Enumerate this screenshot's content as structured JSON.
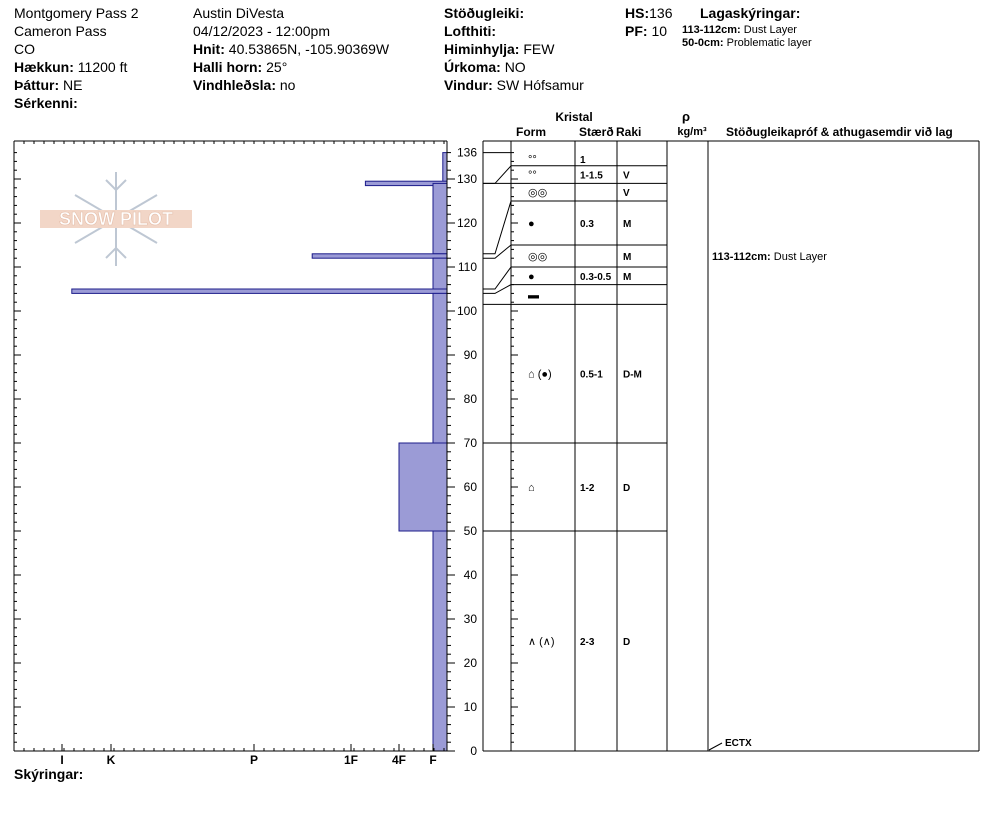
{
  "header": {
    "site": "Montgomery Pass 2",
    "area": "Cameron Pass",
    "state": "CO",
    "elevation_label": "Hækkun:",
    "elevation_value": "11200 ft",
    "aspect_label": "Þáttur:",
    "aspect_value": "NE",
    "features_label": "Sérkenni:",
    "observer": "Austin DiVesta",
    "datetime": "04/12/2023 - 12:00pm",
    "coords_label": "Hnit:",
    "coords_value": "40.53865N, -105.90369W",
    "slope_label": "Halli horn:",
    "slope_value": "25°",
    "windload_label": "Vindhleðsla:",
    "windload_value": "no",
    "stability_label": "Stöðugleiki:",
    "airtemp_label": "Lofthiti:",
    "sky_label": "Himinhylja:",
    "sky_value": "FEW",
    "precip_label": "Úrkoma:",
    "precip_value": "NO",
    "wind_label": "Vindur:",
    "wind_value": "SW Hófsamur",
    "hs_label": "HS:",
    "hs_value": "136",
    "pf_label": "PF:",
    "pf_value": "10",
    "layer_notes_label": "Lagaskýringar:",
    "layer_notes": [
      {
        "range": "113-112cm:",
        "text": "Dust Layer"
      },
      {
        "range": "50-0cm:",
        "text": "Problematic layer"
      }
    ],
    "notes_label": "Skýringar:"
  },
  "logo_text": "SNOW PILOT",
  "columns": {
    "crystal": "Kristal",
    "form": "Form",
    "size": "Stærð",
    "moisture": "Raki",
    "density_symbol": "ρ",
    "density_unit": "kg/m³",
    "tests": "Stöðugleikapróf & athugasemdir við lag"
  },
  "chart_data": {
    "type": "bar",
    "y_axis": {
      "range": [
        0,
        136
      ],
      "ticks": [
        0,
        10,
        20,
        30,
        40,
        50,
        60,
        70,
        80,
        90,
        100,
        110,
        120,
        130,
        136
      ]
    },
    "hardness_scale": [
      "I",
      "K",
      "P",
      "1F",
      "4F",
      "F"
    ],
    "hardness_note": "hardness value: I=6, K=5, P=4, 1F=3, 4F=2, F=1 (bar extends from right edge)",
    "hardness_layers": [
      {
        "top": 136,
        "bottom": 129,
        "hardness": 0.3
      },
      {
        "top": 129.5,
        "bottom": 128.5,
        "hardness": 2.7
      },
      {
        "top": 129,
        "bottom": 113,
        "hardness": 1.0
      },
      {
        "top": 113,
        "bottom": 112,
        "hardness": 3.4
      },
      {
        "top": 112,
        "bottom": 105,
        "hardness": 1.0
      },
      {
        "top": 105,
        "bottom": 104,
        "hardness": 5.8
      },
      {
        "top": 104,
        "bottom": 70,
        "hardness": 1.0
      },
      {
        "top": 70,
        "bottom": 50,
        "hardness": 2.0
      },
      {
        "top": 50,
        "bottom": 0,
        "hardness": 1.0
      }
    ],
    "stratigraphy": [
      {
        "top": 136,
        "bottom": 133,
        "form": "°°",
        "size": "1",
        "moisture": ""
      },
      {
        "top": 133,
        "bottom": 129,
        "form": "°°",
        "size": "1-1.5",
        "moisture": "V"
      },
      {
        "top": 129,
        "bottom": 125,
        "form": "◎◎",
        "size": "",
        "moisture": "V"
      },
      {
        "top": 125,
        "bottom": 115,
        "form": "●",
        "size": "0.3",
        "moisture": "M"
      },
      {
        "top": 115,
        "bottom": 110,
        "form": "◎◎",
        "size": "",
        "moisture": "M"
      },
      {
        "top": 110,
        "bottom": 106,
        "form": "●",
        "size": "0.3-0.5",
        "moisture": "M"
      },
      {
        "top": 106,
        "bottom": 101.5,
        "form": "▬",
        "size": "",
        "moisture": ""
      },
      {
        "top": 101.5,
        "bottom": 70,
        "form": "⌂ (●)",
        "size": "0.5-1",
        "moisture": "D-M"
      },
      {
        "top": 70,
        "bottom": 50,
        "form": "⌂",
        "size": "1-2",
        "moisture": "D"
      },
      {
        "top": 50,
        "bottom": 0,
        "form": "∧ (∧)",
        "size": "2-3",
        "moisture": "D"
      }
    ],
    "left_boundaries": [
      136,
      129,
      113,
      112,
      105,
      104,
      70,
      50
    ],
    "comments": [
      {
        "depth": 112.5,
        "range": "113-112cm:",
        "text": "Dust Layer"
      }
    ],
    "tests": [
      {
        "depth": 0,
        "label": "ECTX"
      }
    ]
  }
}
